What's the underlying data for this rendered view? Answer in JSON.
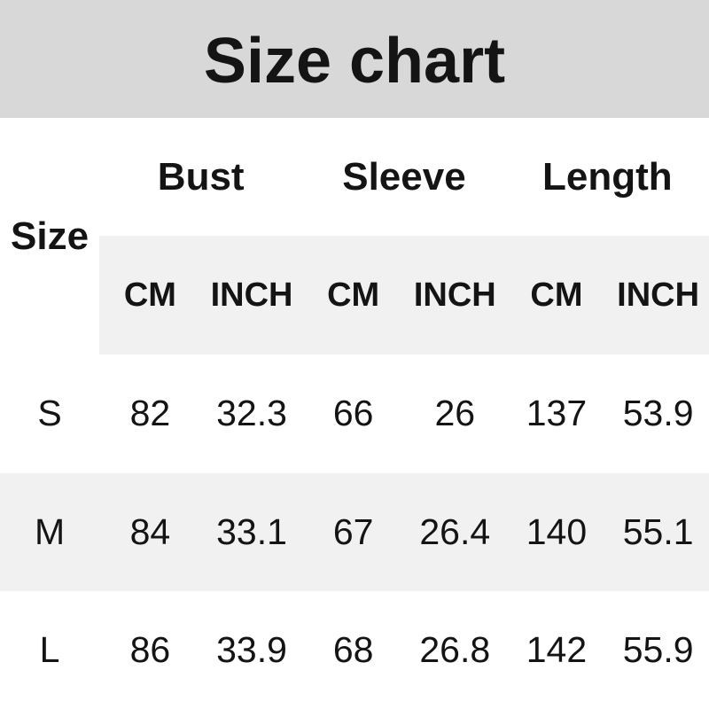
{
  "title": "Size chart",
  "colors": {
    "title_band_bg": "#d8d8d8",
    "stripe_bg": "#f1f1f1",
    "text": "#141414",
    "page_bg": "#ffffff"
  },
  "table": {
    "size_label": "Size",
    "groups": [
      {
        "label": "Bust"
      },
      {
        "label": "Sleeve"
      },
      {
        "label": "Length"
      }
    ],
    "unit_headers": [
      "CM",
      "INCH",
      "CM",
      "INCH",
      "CM",
      "INCH"
    ],
    "rows": [
      {
        "size": "S",
        "values": [
          "82",
          "32.3",
          "66",
          "26",
          "137",
          "53.9"
        ]
      },
      {
        "size": "M",
        "values": [
          "84",
          "33.1",
          "67",
          "26.4",
          "140",
          "55.1"
        ]
      },
      {
        "size": "L",
        "values": [
          "86",
          "33.9",
          "68",
          "26.8",
          "142",
          "55.9"
        ]
      }
    ]
  },
  "chart_data": {
    "type": "table",
    "title": "Size chart",
    "columns": [
      "Size",
      "Bust CM",
      "Bust INCH",
      "Sleeve CM",
      "Sleeve INCH",
      "Length CM",
      "Length INCH"
    ],
    "rows": [
      [
        "S",
        82,
        32.3,
        66,
        26,
        137,
        53.9
      ],
      [
        "M",
        84,
        33.1,
        67,
        26.4,
        140,
        55.1
      ],
      [
        "L",
        86,
        33.9,
        68,
        26.8,
        142,
        55.9
      ]
    ],
    "layout": {
      "grid": false,
      "striped_rows": [
        "M"
      ],
      "header_band": true
    }
  }
}
